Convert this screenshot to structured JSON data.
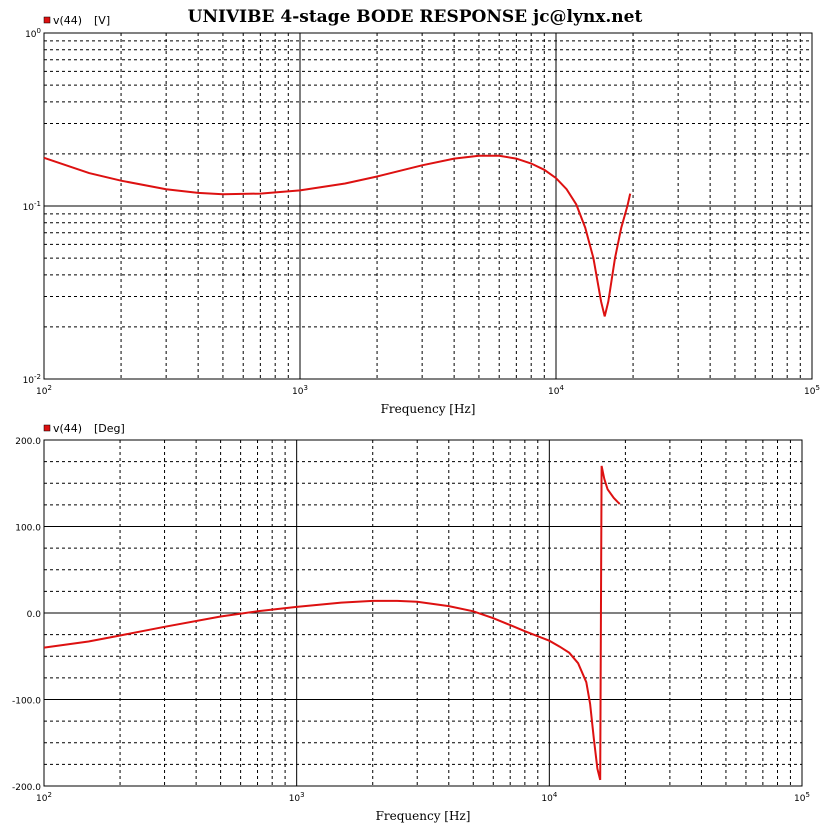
{
  "title": "UNIVIBE 4-stage BODE RESPONSE jc@lynx.net",
  "colors": {
    "trace": "#dd1111",
    "background": "#ffffff",
    "grid": "#000000"
  },
  "chart_data": [
    {
      "type": "line",
      "xscale": "log",
      "yscale": "log",
      "xlim": [
        100,
        100000
      ],
      "ylim": [
        0.01,
        1
      ],
      "grid": true,
      "legend": "top-left",
      "legend_label": "v(44)",
      "unit_label": "[V]",
      "xlabel": "Frequency [Hz]",
      "x_ticks": [
        {
          "base": "10",
          "exp": "2",
          "value": 100
        },
        {
          "base": "10",
          "exp": "3",
          "value": 1000
        },
        {
          "base": "10",
          "exp": "4",
          "value": 10000
        },
        {
          "base": "10",
          "exp": "5",
          "value": 100000
        }
      ],
      "y_ticks": [
        {
          "base": "10",
          "exp": "0",
          "value": 1
        },
        {
          "base": "10",
          "exp": "-1",
          "value": 0.1
        },
        {
          "base": "10",
          "exp": "-2",
          "value": 0.01
        }
      ],
      "series": [
        {
          "x": [
            100,
            150,
            200,
            300,
            400,
            500,
            700,
            1000,
            1500,
            2000,
            3000,
            4000,
            5000,
            6000,
            7000,
            8000,
            9000,
            10000,
            11000,
            12000,
            13000,
            14000,
            15000,
            15500,
            16000,
            17000,
            18000,
            19000,
            19500
          ],
          "y": [
            0.19,
            0.155,
            0.14,
            0.125,
            0.119,
            0.117,
            0.118,
            0.123,
            0.135,
            0.148,
            0.172,
            0.188,
            0.195,
            0.195,
            0.188,
            0.176,
            0.162,
            0.145,
            0.125,
            0.102,
            0.075,
            0.05,
            0.028,
            0.023,
            0.028,
            0.05,
            0.075,
            0.1,
            0.118
          ]
        }
      ]
    },
    {
      "type": "line",
      "xscale": "log",
      "yscale": "linear",
      "xlim": [
        100,
        100000
      ],
      "ylim": [
        -200,
        200
      ],
      "grid": true,
      "legend": "top-left",
      "legend_label": "v(44)",
      "unit_label": "[Deg]",
      "xlabel": "Frequency [Hz]",
      "x_ticks": [
        {
          "base": "10",
          "exp": "2",
          "value": 100
        },
        {
          "base": "10",
          "exp": "3",
          "value": 1000
        },
        {
          "base": "10",
          "exp": "4",
          "value": 10000
        },
        {
          "base": "10",
          "exp": "5",
          "value": 100000
        }
      ],
      "y_ticks": [
        {
          "label": "200.0",
          "value": 200
        },
        {
          "label": "100.0",
          "value": 100
        },
        {
          "label": "0.0",
          "value": 0
        },
        {
          "label": "-100.0",
          "value": -100
        },
        {
          "label": "-200.0",
          "value": -200
        }
      ],
      "series": [
        {
          "x": [
            100,
            150,
            200,
            300,
            500,
            700,
            1000,
            1500,
            2000,
            2500,
            3000,
            4000,
            5000,
            6000,
            7000,
            8000,
            10000,
            11000,
            12000,
            13000,
            14000,
            14500,
            15000,
            15500,
            15900,
            16100,
            16500,
            17000,
            18000,
            18700,
            19000
          ],
          "y": [
            -40,
            -33,
            -26,
            -16,
            -4,
            2,
            7,
            12,
            14,
            14,
            13,
            8,
            2,
            -6,
            -14,
            -21,
            -32,
            -39,
            -46,
            -58,
            -80,
            -105,
            -145,
            -180,
            -193,
            170,
            155,
            143,
            133,
            128,
            126
          ]
        }
      ]
    }
  ]
}
